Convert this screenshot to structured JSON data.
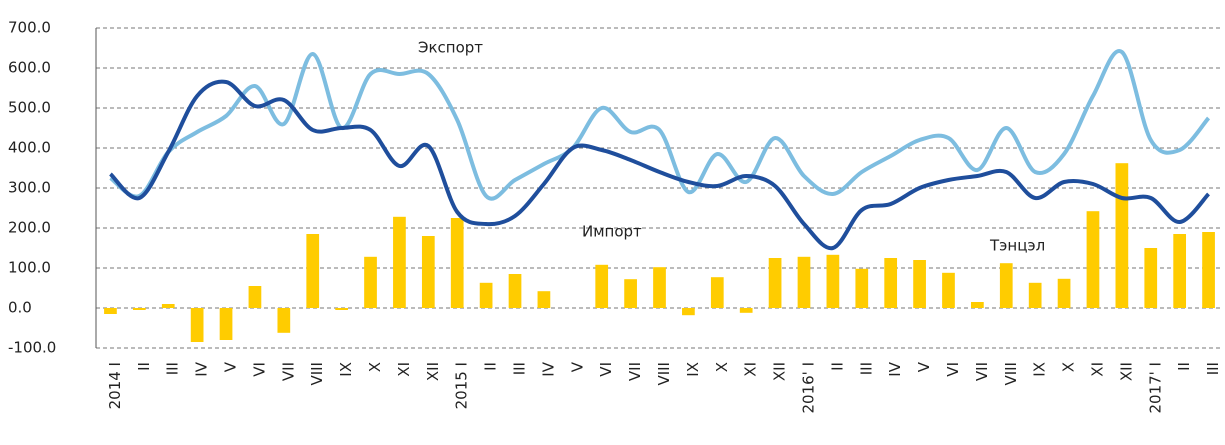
{
  "chart_data": {
    "type": "bar_line",
    "categories": [
      "2014 I",
      "II",
      "III",
      "IV",
      "V",
      "VI",
      "VII",
      "VIII",
      "IX",
      "X",
      "XI",
      "XII",
      "2015 I",
      "II",
      "III",
      "IV",
      "V",
      "VI",
      "VII",
      "VIII",
      "IX",
      "X",
      "XI",
      "XII",
      "2016' I",
      "II",
      "III",
      "IV",
      "V",
      "VI",
      "VII",
      "VIII",
      "IX",
      "X",
      "XI",
      "XII",
      "2017' I",
      "II",
      "III"
    ],
    "series": [
      {
        "name": "Тэнцэл",
        "type": "bar",
        "color": "#ffcc00",
        "values": [
          -15,
          -5,
          10,
          -85,
          -80,
          55,
          -62,
          185,
          -5,
          128,
          228,
          180,
          225,
          63,
          85,
          42,
          0,
          108,
          72,
          102,
          -18,
          77,
          -12,
          125,
          128,
          133,
          98,
          125,
          120,
          88,
          15,
          112,
          63,
          73,
          242,
          362,
          150,
          185,
          190
        ]
      },
      {
        "name": "Экспорт",
        "type": "line",
        "color": "#7dbde0",
        "values": [
          325,
          280,
          390,
          440,
          480,
          555,
          460,
          635,
          450,
          585,
          585,
          585,
          470,
          280,
          320,
          360,
          400,
          500,
          440,
          445,
          290,
          385,
          315,
          425,
          330,
          285,
          340,
          380,
          420,
          425,
          345,
          450,
          340,
          385,
          530,
          640,
          420,
          395,
          475
        ]
      },
      {
        "name": "Импорт",
        "type": "line",
        "color": "#1f4e9c",
        "values": [
          335,
          275,
          390,
          530,
          565,
          505,
          520,
          445,
          450,
          445,
          355,
          405,
          240,
          210,
          230,
          310,
          400,
          395,
          370,
          340,
          315,
          305,
          330,
          305,
          210,
          150,
          245,
          260,
          300,
          320,
          330,
          340,
          275,
          315,
          310,
          275,
          275,
          215,
          285
        ]
      }
    ],
    "ylim": [
      -100,
      700
    ],
    "yticks": [
      {
        "value": -100,
        "label": "-100.0"
      },
      {
        "value": 0,
        "label": "0.0"
      },
      {
        "value": 100,
        "label": "100.0"
      },
      {
        "value": 200,
        "label": "200.0"
      },
      {
        "value": 300,
        "label": "300.0"
      },
      {
        "value": 400,
        "label": "400.0"
      },
      {
        "value": 500,
        "label": "500.0"
      },
      {
        "value": 600,
        "label": "600.0"
      },
      {
        "value": 700,
        "label": "700.0"
      }
    ],
    "grid": true
  }
}
